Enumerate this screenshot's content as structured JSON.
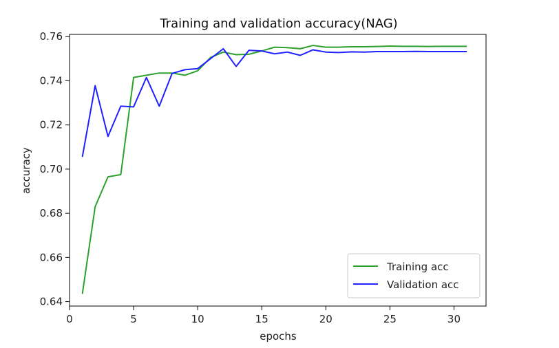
{
  "chart_data": {
    "type": "line",
    "title": "Training and validation accuracy(NAG)",
    "xlabel": "epochs",
    "ylabel": "accuracy",
    "xlim": [
      0,
      32.5
    ],
    "ylim": [
      0.638,
      0.761
    ],
    "xticks": [
      0,
      5,
      10,
      15,
      20,
      25,
      30
    ],
    "yticks": [
      0.64,
      0.66,
      0.68,
      0.7,
      0.72,
      0.74,
      0.76
    ],
    "ytick_labels": [
      "0.64",
      "0.66",
      "0.68",
      "0.70",
      "0.72",
      "0.74",
      "0.76"
    ],
    "grid": false,
    "legend_position": "lower-right",
    "x": [
      1,
      2,
      3,
      4,
      5,
      6,
      7,
      8,
      9,
      10,
      11,
      12,
      13,
      14,
      15,
      16,
      17,
      18,
      19,
      20,
      21,
      22,
      23,
      24,
      25,
      26,
      27,
      28,
      29,
      30,
      31
    ],
    "series": [
      {
        "name": "Training acc",
        "color": "#2ca02c",
        "values": [
          0.6435,
          0.683,
          0.6965,
          0.6975,
          0.7415,
          0.7425,
          0.7435,
          0.7435,
          0.7425,
          0.7445,
          0.7505,
          0.753,
          0.7518,
          0.752,
          0.7535,
          0.7552,
          0.755,
          0.7545,
          0.756,
          0.7552,
          0.7552,
          0.7554,
          0.7554,
          0.7555,
          0.7557,
          0.7556,
          0.7556,
          0.7555,
          0.7556,
          0.7556,
          0.7556
        ]
      },
      {
        "name": "Validation acc",
        "color": "#1f1fff",
        "values": [
          0.7055,
          0.7378,
          0.7148,
          0.7285,
          0.7282,
          0.7415,
          0.7285,
          0.7433,
          0.745,
          0.7455,
          0.75,
          0.7545,
          0.7465,
          0.7538,
          0.7535,
          0.7522,
          0.753,
          0.7515,
          0.754,
          0.753,
          0.7528,
          0.7531,
          0.753,
          0.7532,
          0.7532,
          0.7532,
          0.7533,
          0.7532,
          0.7532,
          0.7532,
          0.7532
        ]
      }
    ]
  }
}
